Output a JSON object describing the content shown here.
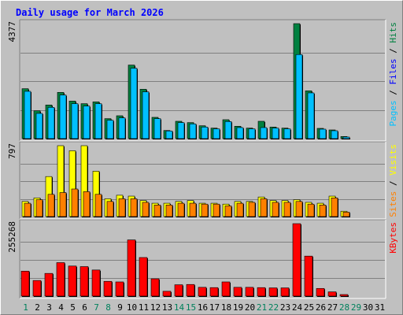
{
  "chart_data": {
    "type": "bar",
    "title": "Daily usage for March 2026",
    "title_color": "#0000FF",
    "grid": true,
    "categories": [
      "1",
      "2",
      "3",
      "4",
      "5",
      "6",
      "7",
      "8",
      "9",
      "10",
      "11",
      "12",
      "13",
      "14",
      "15",
      "16",
      "17",
      "18",
      "19",
      "20",
      "21",
      "22",
      "23",
      "24",
      "25",
      "26",
      "27",
      "28",
      "29",
      "30",
      "31"
    ],
    "weekend_days": [
      "1",
      "7",
      "8",
      "14",
      "15",
      "21",
      "22",
      "28",
      "29"
    ],
    "day_label_colors": {
      "weekday": "#000000",
      "weekend": "#00805C"
    },
    "panels": [
      {
        "id": "hits",
        "ymax_label": "4377",
        "ylim": [
          0,
          4377
        ],
        "legend": [
          {
            "text": "Pages",
            "color": "#00C0FF"
          },
          {
            "text": " / ",
            "color": "#000000"
          },
          {
            "text": "Files",
            "color": "#0000FF"
          },
          {
            "text": " / ",
            "color": "#000000"
          },
          {
            "text": "Hits",
            "color": "#008040"
          }
        ],
        "series": [
          {
            "name": "Hits",
            "color": "#008040",
            "values": [
              1900,
              1060,
              1280,
              1760,
              1430,
              1330,
              1400,
              760,
              870,
              2800,
              1880,
              810,
              310,
              660,
              610,
              490,
              400,
              720,
              470,
              400,
              660,
              440,
              400,
              4377,
              1820,
              390,
              330,
              80,
              0,
              0,
              0
            ]
          },
          {
            "name": "Files",
            "color": "#00C0FF",
            "values": [
              1800,
              960,
              1190,
              1660,
              1330,
              1240,
              1330,
              700,
              790,
              2680,
              1780,
              760,
              290,
              610,
              560,
              440,
              370,
              650,
              420,
              370,
              420,
              400,
              370,
              3200,
              1740,
              360,
              300,
              50,
              0,
              0,
              0
            ]
          }
        ]
      },
      {
        "id": "visits",
        "ymax_label": "797",
        "ylim": [
          0,
          797
        ],
        "legend": [
          {
            "text": "Sites",
            "color": "#FF8000"
          },
          {
            "text": " / ",
            "color": "#000000"
          },
          {
            "text": "Visits",
            "color": "#FFFF00"
          }
        ],
        "series": [
          {
            "name": "Visits",
            "color": "#FFFF00",
            "values": [
              170,
              210,
              450,
              797,
              740,
              797,
              510,
              200,
              240,
              230,
              180,
              150,
              150,
              170,
              180,
              150,
              150,
              140,
              170,
              170,
              220,
              180,
              180,
              190,
              160,
              150,
              230,
              60,
              0,
              0,
              0
            ]
          },
          {
            "name": "Sites",
            "color": "#FF8000",
            "values": [
              150,
              190,
              250,
              270,
              310,
              280,
              250,
              170,
              200,
              200,
              160,
              130,
              130,
              150,
              150,
              140,
              140,
              120,
              150,
              160,
              200,
              160,
              160,
              170,
              140,
              130,
              210,
              50,
              0,
              0,
              0
            ]
          }
        ]
      },
      {
        "id": "kbytes",
        "ymax_label": "255268",
        "ylim": [
          0,
          255268
        ],
        "legend": [
          {
            "text": "KBytes",
            "color": "#FF0000"
          }
        ],
        "series": [
          {
            "name": "KBytes",
            "color": "#FF0000",
            "values": [
              88000,
              55000,
              80000,
              118000,
              106000,
              104000,
              92000,
              52000,
              50000,
              198000,
              136000,
              61000,
              17000,
              40000,
              41000,
              31000,
              30000,
              50000,
              31000,
              31000,
              30000,
              29000,
              29000,
              255268,
              141000,
              27000,
              15000,
              4000,
              0,
              0,
              0
            ]
          }
        ]
      }
    ]
  }
}
